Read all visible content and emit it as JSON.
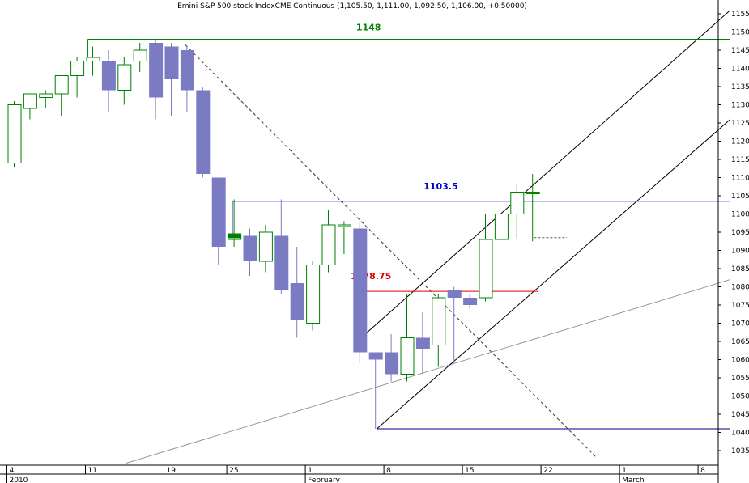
{
  "chart_data": {
    "type": "candlestick",
    "title": "Emini S&P 500 stock IndexCME Continuous (1,105.50, 1,111.00, 1,092.50, 1,106.00, +0.50000)",
    "ylim": [
      1030,
      1158
    ],
    "y_ticks": [
      1035,
      1040,
      1045,
      1050,
      1055,
      1060,
      1065,
      1070,
      1075,
      1080,
      1085,
      1090,
      1095,
      1100,
      1105,
      1110,
      1115,
      1120,
      1125,
      1130,
      1135,
      1140,
      1145,
      1150,
      1155
    ],
    "x_ticks": [
      {
        "i": 0,
        "label": "4"
      },
      {
        "i": 5,
        "label": "11"
      },
      {
        "i": 10,
        "label": "19"
      },
      {
        "i": 14,
        "label": "25"
      },
      {
        "i": 19,
        "label": "1"
      },
      {
        "i": 24,
        "label": "8"
      },
      {
        "i": 29,
        "label": "15"
      },
      {
        "i": 34,
        "label": "22"
      },
      {
        "i": 39,
        "label": "1"
      },
      {
        "i": 44,
        "label": "8"
      }
    ],
    "x_labels_lower": [
      {
        "i": 0,
        "label": "2010"
      },
      {
        "i": 19,
        "label": "February"
      },
      {
        "i": 39,
        "label": "March"
      }
    ],
    "candles": [
      {
        "o": 1114,
        "h": 1131,
        "l": 1113,
        "c": 1130
      },
      {
        "o": 1129,
        "h": 1133,
        "l": 1126,
        "c": 1133
      },
      {
        "o": 1132,
        "h": 1134,
        "l": 1129,
        "c": 1133
      },
      {
        "o": 1133,
        "h": 1138,
        "l": 1127,
        "c": 1138
      },
      {
        "o": 1138,
        "h": 1143,
        "l": 1132,
        "c": 1142
      },
      {
        "o": 1142,
        "h": 1146,
        "l": 1138,
        "c": 1143
      },
      {
        "o": 1142,
        "h": 1145,
        "l": 1128,
        "c": 1134
      },
      {
        "o": 1134,
        "h": 1143,
        "l": 1130,
        "c": 1141
      },
      {
        "o": 1142,
        "h": 1147,
        "l": 1139,
        "c": 1145
      },
      {
        "o": 1147,
        "h": 1148,
        "l": 1126,
        "c": 1132
      },
      {
        "o": 1146,
        "h": 1147,
        "l": 1127,
        "c": 1137
      },
      {
        "o": 1145,
        "h": 1146,
        "l": 1128,
        "c": 1134
      },
      {
        "o": 1134,
        "h": 1135,
        "l": 1110,
        "c": 1111
      },
      {
        "o": 1110,
        "h": 1110,
        "l": 1086,
        "c": 1091
      },
      {
        "o": 1093,
        "h": 1104,
        "l": 1091,
        "c": 1094
      },
      {
        "o": 1094,
        "h": 1096,
        "l": 1083,
        "c": 1087
      },
      {
        "o": 1087,
        "h": 1097,
        "l": 1084,
        "c": 1095
      },
      {
        "o": 1094,
        "h": 1104,
        "l": 1078,
        "c": 1079
      },
      {
        "o": 1081,
        "h": 1091,
        "l": 1066,
        "c": 1071
      },
      {
        "o": 1070,
        "h": 1087,
        "l": 1068,
        "c": 1086
      },
      {
        "o": 1086,
        "h": 1101,
        "l": 1084,
        "c": 1097
      },
      {
        "o": 1097,
        "h": 1098,
        "l": 1089,
        "c": 1097
      },
      {
        "o": 1096,
        "h": 1098,
        "l": 1059,
        "c": 1062
      },
      {
        "o": 1062,
        "h": 1062,
        "l": 1041,
        "c": 1060
      },
      {
        "o": 1062,
        "h": 1067,
        "l": 1054,
        "c": 1056
      },
      {
        "o": 1056,
        "h": 1078,
        "l": 1054,
        "c": 1066
      },
      {
        "o": 1066,
        "h": 1073,
        "l": 1056,
        "c": 1063
      },
      {
        "o": 1064,
        "h": 1078,
        "l": 1058,
        "c": 1077
      },
      {
        "o": 1079,
        "h": 1080,
        "l": 1059,
        "c": 1077
      },
      {
        "o": 1077,
        "h": 1078,
        "l": 1074,
        "c": 1075
      },
      {
        "o": 1077,
        "h": 1100,
        "l": 1076,
        "c": 1093
      },
      {
        "o": 1093,
        "h": 1100,
        "l": 1093,
        "c": 1100
      },
      {
        "o": 1100,
        "h": 1108,
        "l": 1093,
        "c": 1106
      },
      {
        "o": 1106,
        "h": 1111,
        "l": 1092.5,
        "c": 1106
      }
    ],
    "levels": [
      {
        "label": "1148",
        "value": 1148,
        "color": "#008000"
      },
      {
        "label": "1103.5",
        "value": 1103.5,
        "color": "#0000cc"
      },
      {
        "label": "1078.75",
        "value": 1078.75,
        "color": "#e00000"
      }
    ],
    "colors": {
      "up_outline": "#008000",
      "down_fill": "#7b7bc4",
      "doji": "#008000",
      "grid_axis": "#000000",
      "trendline": "#000080"
    }
  }
}
